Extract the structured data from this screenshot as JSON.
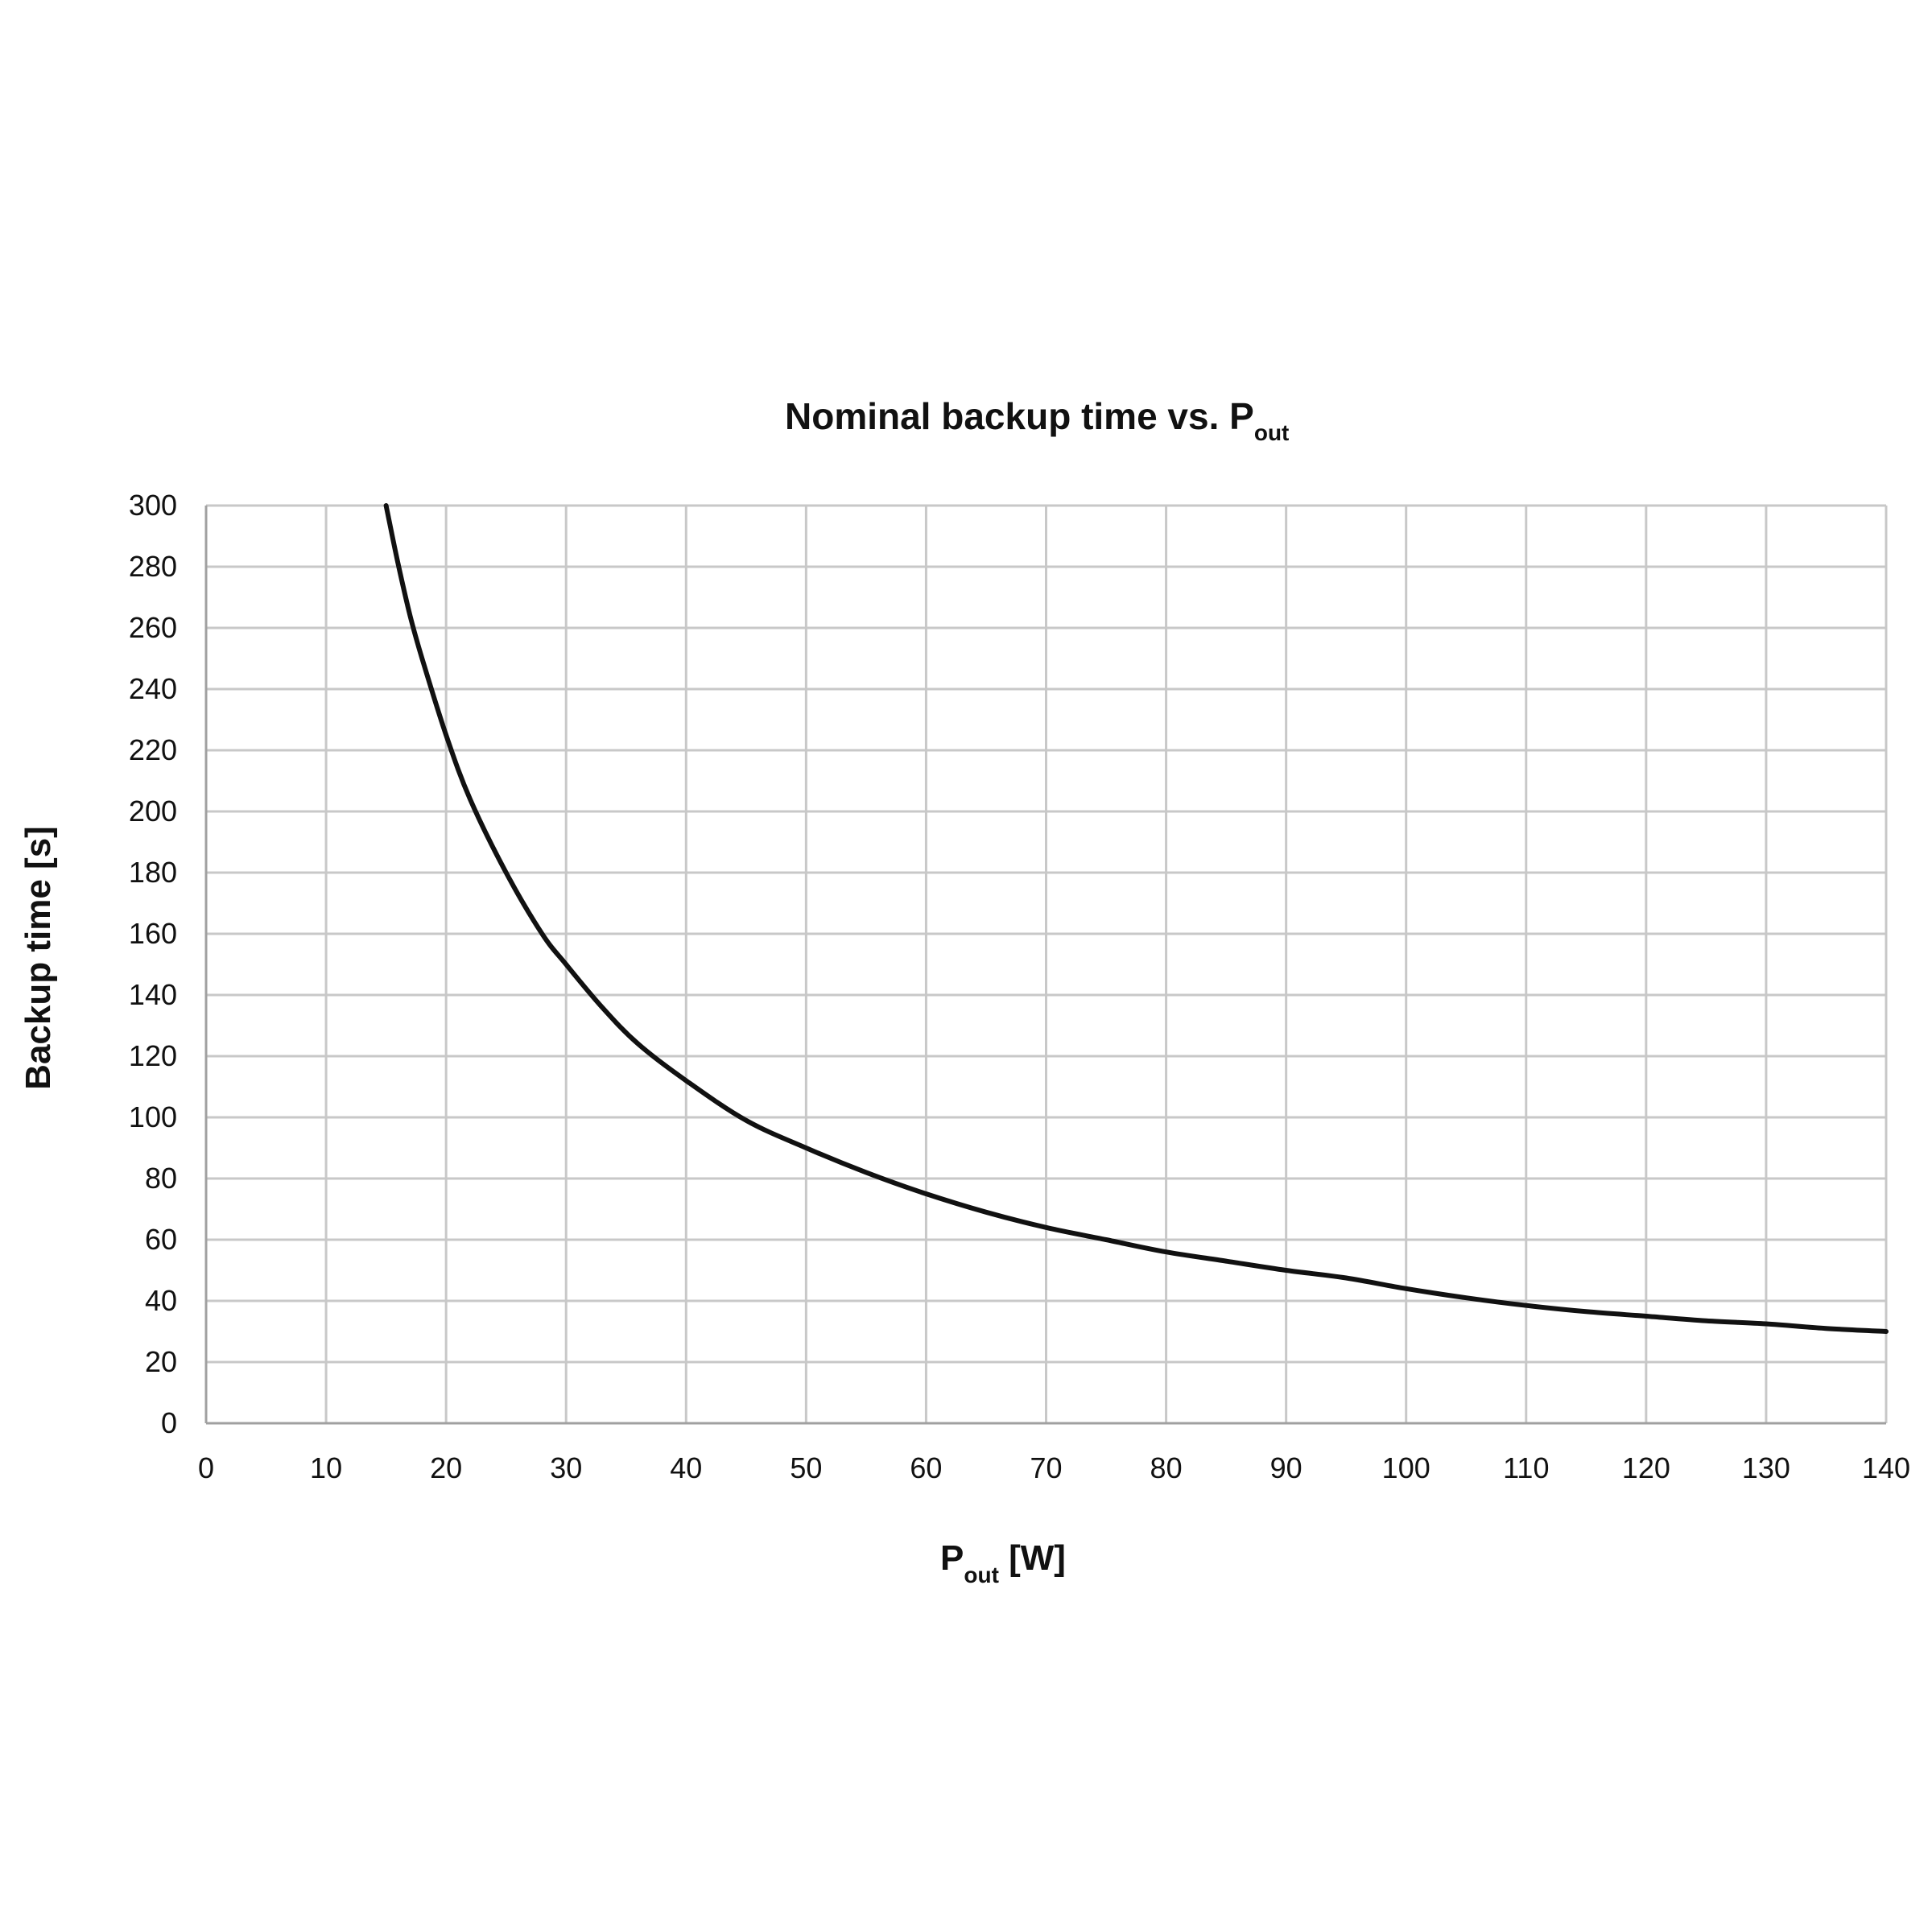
{
  "chart_data": {
    "type": "line",
    "title_main": "Nominal backup time vs. P",
    "title_sub": "out",
    "xlabel_main": "P",
    "xlabel_sub": "out",
    "xlabel_unit": " [W]",
    "ylabel": "Backup time [s]",
    "xlim": [
      0,
      140
    ],
    "ylim": [
      0,
      300
    ],
    "xticks": [
      0,
      10,
      20,
      30,
      40,
      50,
      60,
      70,
      80,
      90,
      100,
      110,
      120,
      130,
      140
    ],
    "yticks": [
      0,
      20,
      40,
      60,
      80,
      100,
      120,
      140,
      160,
      180,
      200,
      220,
      240,
      260,
      280,
      300
    ],
    "grid": true,
    "series": [
      {
        "color": "#111111",
        "x": [
          15,
          16,
          17,
          18,
          20,
          22,
          25,
          28,
          30,
          33,
          36,
          40,
          45,
          50,
          55,
          60,
          65,
          70,
          75,
          80,
          85,
          90,
          95,
          100,
          105,
          110,
          115,
          120,
          125,
          130,
          135,
          140
        ],
        "y": [
          300,
          281,
          264,
          250,
          225,
          204,
          180,
          160,
          150,
          136,
          124,
          112,
          99,
          90,
          82,
          75,
          69,
          64,
          60,
          56,
          53,
          50,
          47.5,
          44,
          41,
          38.5,
          36.5,
          35,
          33.5,
          32.5,
          31,
          30
        ]
      }
    ]
  }
}
